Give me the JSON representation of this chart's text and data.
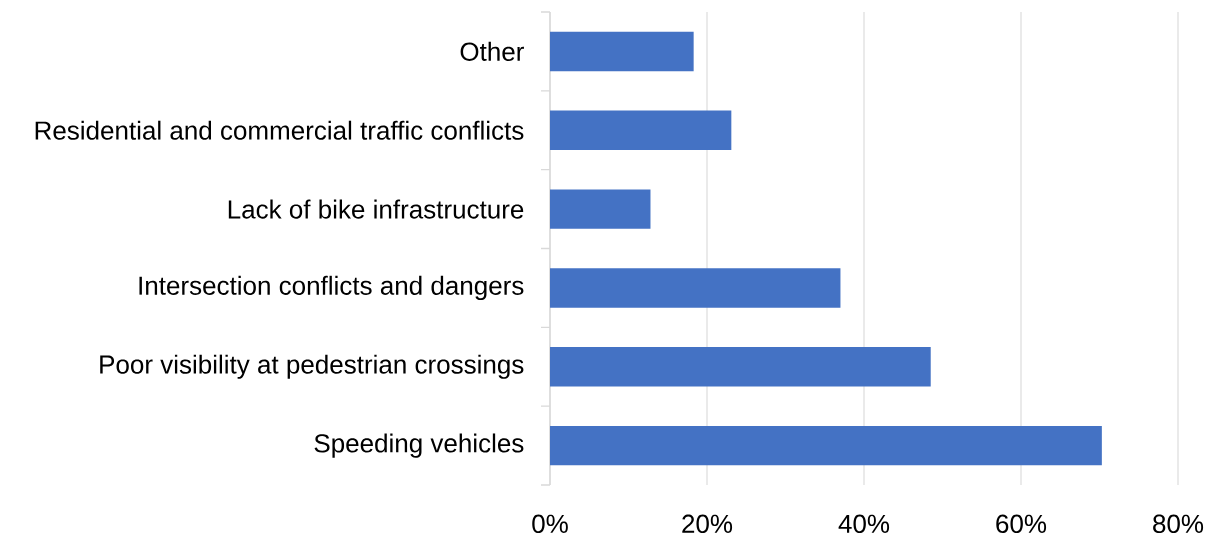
{
  "chart_data": {
    "type": "bar",
    "orientation": "horizontal",
    "categories": [
      "Other",
      "Residential and commercial traffic conflicts",
      "Lack of bike infrastructure",
      "Intersection conflicts and dangers",
      "Poor visibility at pedestrian crossings",
      "Speeding vehicles"
    ],
    "values": [
      18.3,
      23.1,
      12.8,
      37.0,
      48.5,
      70.3
    ],
    "color": "#4472c4",
    "xlim": [
      0,
      80
    ],
    "xticks": [
      {
        "value": 0,
        "label": "0%"
      },
      {
        "value": 20,
        "label": "20%"
      },
      {
        "value": 40,
        "label": "40%"
      },
      {
        "value": 60,
        "label": "60%"
      },
      {
        "value": 80,
        "label": "80%"
      }
    ],
    "grid": "x"
  }
}
